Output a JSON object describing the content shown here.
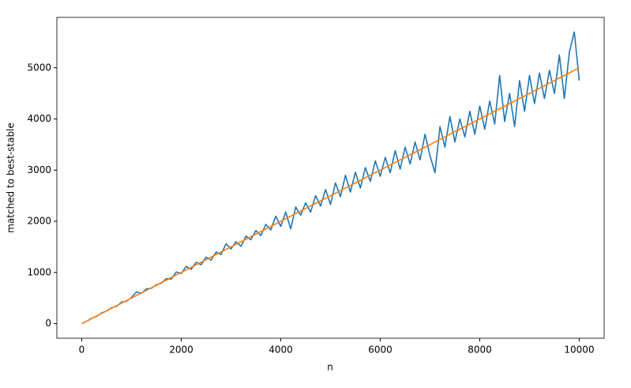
{
  "chart_data": {
    "type": "line",
    "xlabel": "n",
    "ylabel": "matched to best-stable",
    "x": [
      0,
      100,
      200,
      300,
      400,
      500,
      600,
      700,
      800,
      900,
      1000,
      1100,
      1200,
      1300,
      1400,
      1500,
      1600,
      1700,
      1800,
      1900,
      2000,
      2100,
      2200,
      2300,
      2400,
      2500,
      2600,
      2700,
      2800,
      2900,
      3000,
      3100,
      3200,
      3300,
      3400,
      3500,
      3600,
      3700,
      3800,
      3900,
      4000,
      4100,
      4200,
      4300,
      4400,
      4500,
      4600,
      4700,
      4800,
      4900,
      5000,
      5100,
      5200,
      5300,
      5400,
      5500,
      5600,
      5700,
      5800,
      5900,
      6000,
      6100,
      6200,
      6300,
      6400,
      6500,
      6600,
      6700,
      6800,
      6900,
      7000,
      7100,
      7200,
      7300,
      7400,
      7500,
      7600,
      7700,
      7800,
      7900,
      8000,
      8100,
      8200,
      8300,
      8400,
      8500,
      8600,
      8700,
      8800,
      8900,
      9000,
      9100,
      9200,
      9300,
      9400,
      9500,
      9600,
      9700,
      9800,
      9900,
      10000
    ],
    "series": [
      {
        "color": "#1f77b4",
        "values": [
          0,
          48,
          105,
          142,
          210,
          245,
          310,
          338,
          420,
          440,
          510,
          620,
          590,
          680,
          690,
          760,
          790,
          880,
          870,
          1010,
          980,
          1120,
          1060,
          1200,
          1150,
          1300,
          1240,
          1400,
          1350,
          1560,
          1460,
          1600,
          1510,
          1710,
          1640,
          1820,
          1720,
          1940,
          1830,
          2100,
          1900,
          2180,
          1850,
          2280,
          2120,
          2360,
          2180,
          2500,
          2300,
          2620,
          2330,
          2750,
          2480,
          2900,
          2570,
          2960,
          2650,
          3050,
          2780,
          3180,
          2880,
          3250,
          2950,
          3380,
          3020,
          3450,
          3120,
          3550,
          3200,
          3700,
          3280,
          2950,
          3850,
          3450,
          4050,
          3550,
          4000,
          3650,
          4150,
          3700,
          4250,
          3800,
          4350,
          3900,
          4850,
          3950,
          4500,
          3850,
          4750,
          4150,
          4850,
          4300,
          4900,
          4400,
          4950,
          4500,
          5250,
          4400,
          5300,
          5700,
          4750
        ]
      },
      {
        "color": "#ff7f0e",
        "values": [
          0,
          50,
          100,
          150,
          200,
          250,
          300,
          350,
          400,
          450,
          500,
          550,
          600,
          650,
          700,
          750,
          800,
          850,
          900,
          950,
          1000,
          1050,
          1100,
          1150,
          1200,
          1250,
          1300,
          1350,
          1400,
          1450,
          1500,
          1550,
          1600,
          1650,
          1700,
          1750,
          1800,
          1850,
          1900,
          1950,
          2000,
          2050,
          2100,
          2150,
          2200,
          2250,
          2300,
          2350,
          2400,
          2450,
          2500,
          2550,
          2600,
          2650,
          2700,
          2750,
          2800,
          2850,
          2900,
          2950,
          3000,
          3050,
          3100,
          3150,
          3200,
          3250,
          3300,
          3350,
          3400,
          3450,
          3500,
          3550,
          3600,
          3650,
          3700,
          3750,
          3800,
          3850,
          3900,
          3950,
          4000,
          4050,
          4100,
          4150,
          4200,
          4250,
          4300,
          4350,
          4400,
          4450,
          4500,
          4550,
          4600,
          4650,
          4700,
          4750,
          4800,
          4850,
          4900,
          4950,
          5000
        ]
      }
    ],
    "xlim": [
      -500,
      10500
    ],
    "xticks": [
      0,
      2000,
      4000,
      6000,
      8000,
      10000
    ],
    "ylim": [
      -285,
      5985
    ],
    "yticks": [
      0,
      1000,
      2000,
      3000,
      4000,
      5000
    ],
    "grid": false
  }
}
